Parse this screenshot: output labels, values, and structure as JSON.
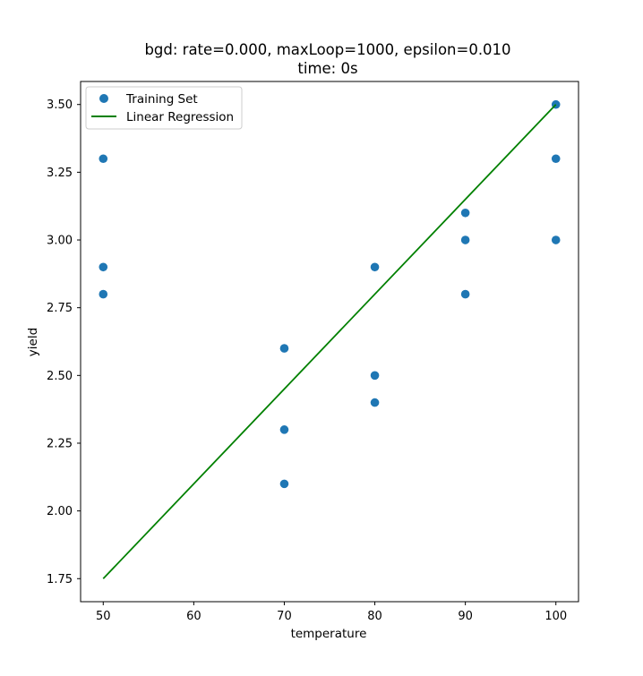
{
  "chart_data": {
    "type": "scatter",
    "title": "bgd: rate=0.000, maxLoop=1000, epsilon=0.010",
    "subtitle": "time: 0s",
    "xlabel": "temperature",
    "ylabel": "yield",
    "xlim": [
      47.5,
      102.5
    ],
    "ylim": [
      1.665,
      3.585
    ],
    "xticks": [
      "50",
      "60",
      "70",
      "80",
      "90",
      "100"
    ],
    "yticks": [
      "1.75",
      "2.00",
      "2.25",
      "2.50",
      "2.75",
      "3.00",
      "3.25",
      "3.50"
    ],
    "grid": false,
    "legend_position": "top-left",
    "series": [
      {
        "name": "Training Set",
        "kind": "scatter",
        "color": "#1f77b4",
        "x": [
          50,
          50,
          50,
          70,
          70,
          70,
          80,
          80,
          80,
          90,
          90,
          90,
          100,
          100,
          100
        ],
        "y": [
          3.3,
          2.9,
          2.8,
          2.6,
          2.3,
          2.1,
          2.9,
          2.5,
          2.4,
          3.1,
          3.0,
          2.8,
          3.5,
          3.3,
          3.0
        ]
      },
      {
        "name": "Linear Regression",
        "kind": "line",
        "color": "#008000",
        "x": [
          50,
          100
        ],
        "y": [
          1.75,
          3.5
        ]
      }
    ]
  }
}
